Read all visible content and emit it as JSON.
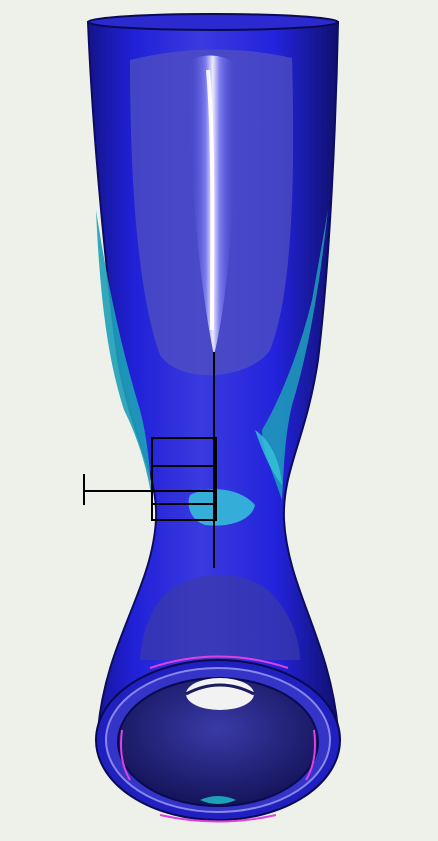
{
  "scene": {
    "background_color": "#eef0ea",
    "model": "hourglass-tube-mesh",
    "colors": {
      "body_dark": "#1414a8",
      "body_mid": "#2222e6",
      "body_light": "#4a4ad8",
      "highlight": "#f4f4ff",
      "stress_teal": "#1ea0b8",
      "stress_light": "#35c4d8",
      "interior": "#22227a",
      "rim_magenta": "#e040e0",
      "crosshair": "#000000"
    },
    "icons": [
      "crosshair-cursor-icon",
      "selection-box-icon"
    ]
  }
}
